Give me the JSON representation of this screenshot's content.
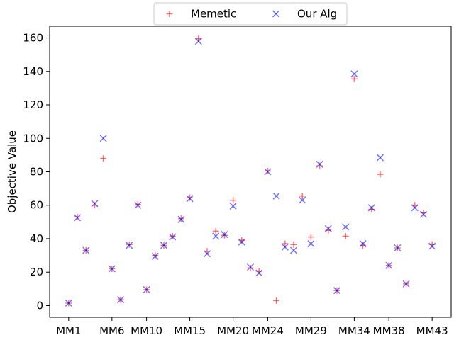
{
  "chart_data": {
    "type": "scatter",
    "ylabel": "Objective Value",
    "ylim": [
      -7,
      167
    ],
    "xlim": [
      -2.2,
      44.2
    ],
    "yticks": [
      0,
      20,
      40,
      60,
      80,
      100,
      120,
      140,
      160
    ],
    "xticks": [
      {
        "x": 0,
        "label": "MM1"
      },
      {
        "x": 5,
        "label": "MM6"
      },
      {
        "x": 9,
        "label": "MM10"
      },
      {
        "x": 14,
        "label": "MM15"
      },
      {
        "x": 19,
        "label": "MM20"
      },
      {
        "x": 23,
        "label": "MM24"
      },
      {
        "x": 28,
        "label": "MM29"
      },
      {
        "x": 33,
        "label": "MM34"
      },
      {
        "x": 37,
        "label": "MM38"
      },
      {
        "x": 42,
        "label": "MM43"
      }
    ],
    "legend_position": "top-center",
    "series": [
      {
        "name": "Memetic",
        "marker": "plus",
        "color": "#ff0000",
        "values": [
          1.5,
          53,
          33,
          60,
          88,
          22,
          3.5,
          36.5,
          60.5,
          9.5,
          30,
          36,
          41.5,
          52,
          64.5,
          159.5,
          32.5,
          44.5,
          42,
          63,
          39,
          22.5,
          20.5,
          80.5,
          3,
          37,
          36.5,
          65.5,
          41,
          83.5,
          45,
          9,
          41.5,
          135.5,
          36,
          57.5,
          78.5,
          24,
          34.5,
          13,
          60,
          55.5,
          36.5
        ]
      },
      {
        "name": "Our Alg",
        "marker": "x",
        "color": "#0000ff",
        "values": [
          1.5,
          52.5,
          33,
          61,
          100,
          22,
          3.5,
          36,
          60,
          9.5,
          29.5,
          36,
          41,
          51.5,
          64,
          158,
          31,
          41.5,
          42.5,
          59.5,
          38,
          23,
          19.5,
          80,
          65.5,
          35,
          33,
          63,
          37,
          84.5,
          46,
          9,
          47,
          138.5,
          37,
          58.5,
          88.5,
          24,
          34.5,
          13,
          58.5,
          54.5,
          35.5
        ]
      }
    ]
  }
}
